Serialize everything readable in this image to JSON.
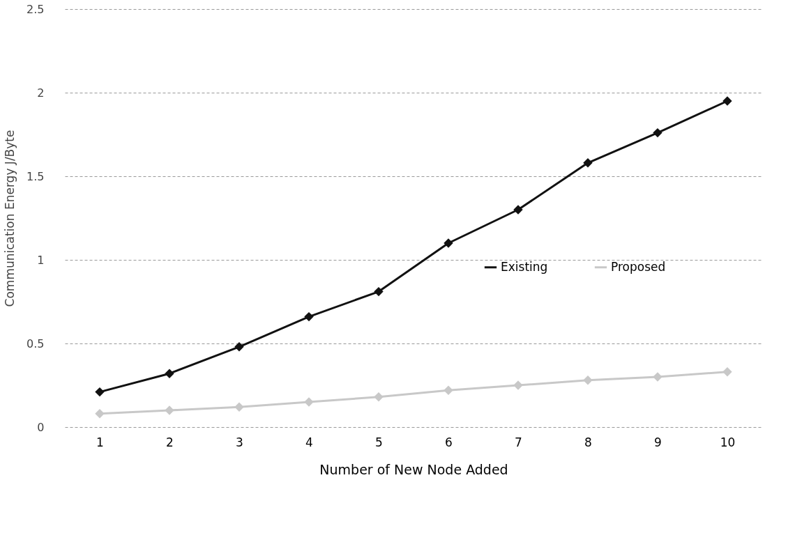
{
  "chart_data": {
    "type": "line",
    "xlabel": "Number of New Node Added",
    "ylabel": "Communication Energy J/Byte",
    "categories": [
      "1",
      "2",
      "3",
      "4",
      "5",
      "6",
      "7",
      "8",
      "9",
      "10"
    ],
    "series": [
      {
        "name": "Existing",
        "color": "#111111",
        "values": [
          0.21,
          0.32,
          0.48,
          0.66,
          0.81,
          1.1,
          1.3,
          1.58,
          1.76,
          1.95
        ]
      },
      {
        "name": "Proposed",
        "color": "#c8c8c8",
        "values": [
          0.08,
          0.1,
          0.12,
          0.15,
          0.18,
          0.22,
          0.25,
          0.28,
          0.3,
          0.33
        ]
      }
    ],
    "ylim": [
      0,
      2.5
    ],
    "yticks": [
      0,
      0.5,
      1,
      1.5,
      2,
      2.5
    ],
    "grid": "y",
    "legend": "right",
    "marker": "diamond",
    "line_style": "solid"
  }
}
